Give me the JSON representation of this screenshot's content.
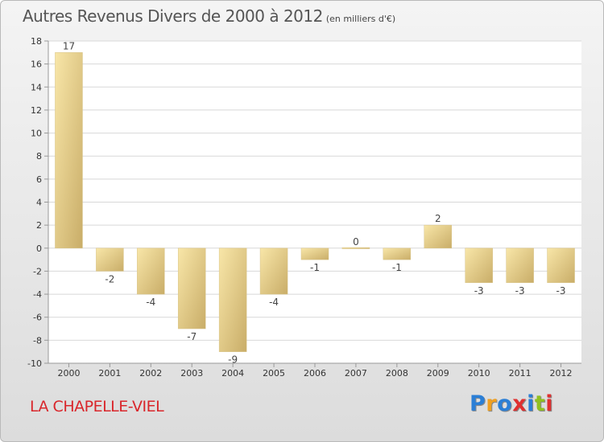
{
  "title": {
    "main": "Autres Revenus Divers de 2000 à 2012",
    "sub": "(en milliers d'€)"
  },
  "commune": "LA CHAPELLE-VIEL",
  "logo": {
    "text": "Proxiti",
    "colors": [
      "#2b7fd6",
      "#f0a020",
      "#2b7fd6",
      "#e03030",
      "#2b7fd6",
      "#90c020",
      "#e03030"
    ]
  },
  "colors": {
    "bar_light": "#f8e6a8",
    "bar_dark": "#c9ad68",
    "axis": "#999999",
    "grid": "#d8d8d8",
    "commune": "#d9262b"
  },
  "chart_data": {
    "type": "bar",
    "categories": [
      "2000",
      "2001",
      "2002",
      "2003",
      "2004",
      "2005",
      "2006",
      "2007",
      "2008",
      "2009",
      "2010",
      "2011",
      "2012"
    ],
    "values": [
      17,
      -2,
      -4,
      -7,
      -9,
      -4,
      -1,
      0,
      -1,
      2,
      -3,
      -3,
      -3
    ],
    "value_labels": [
      "17",
      "-2",
      "-4",
      "-7",
      "-9",
      "-4",
      "-1",
      "0",
      "-1",
      "2",
      "-3",
      "-3",
      "-3"
    ],
    "yticks": [
      18,
      16,
      14,
      12,
      10,
      8,
      6,
      4,
      2,
      0,
      -2,
      -4,
      -6,
      -8,
      -10
    ],
    "ylim": [
      -10,
      18
    ],
    "xlabel": "",
    "ylabel": "",
    "grid": true,
    "legend": "none"
  }
}
